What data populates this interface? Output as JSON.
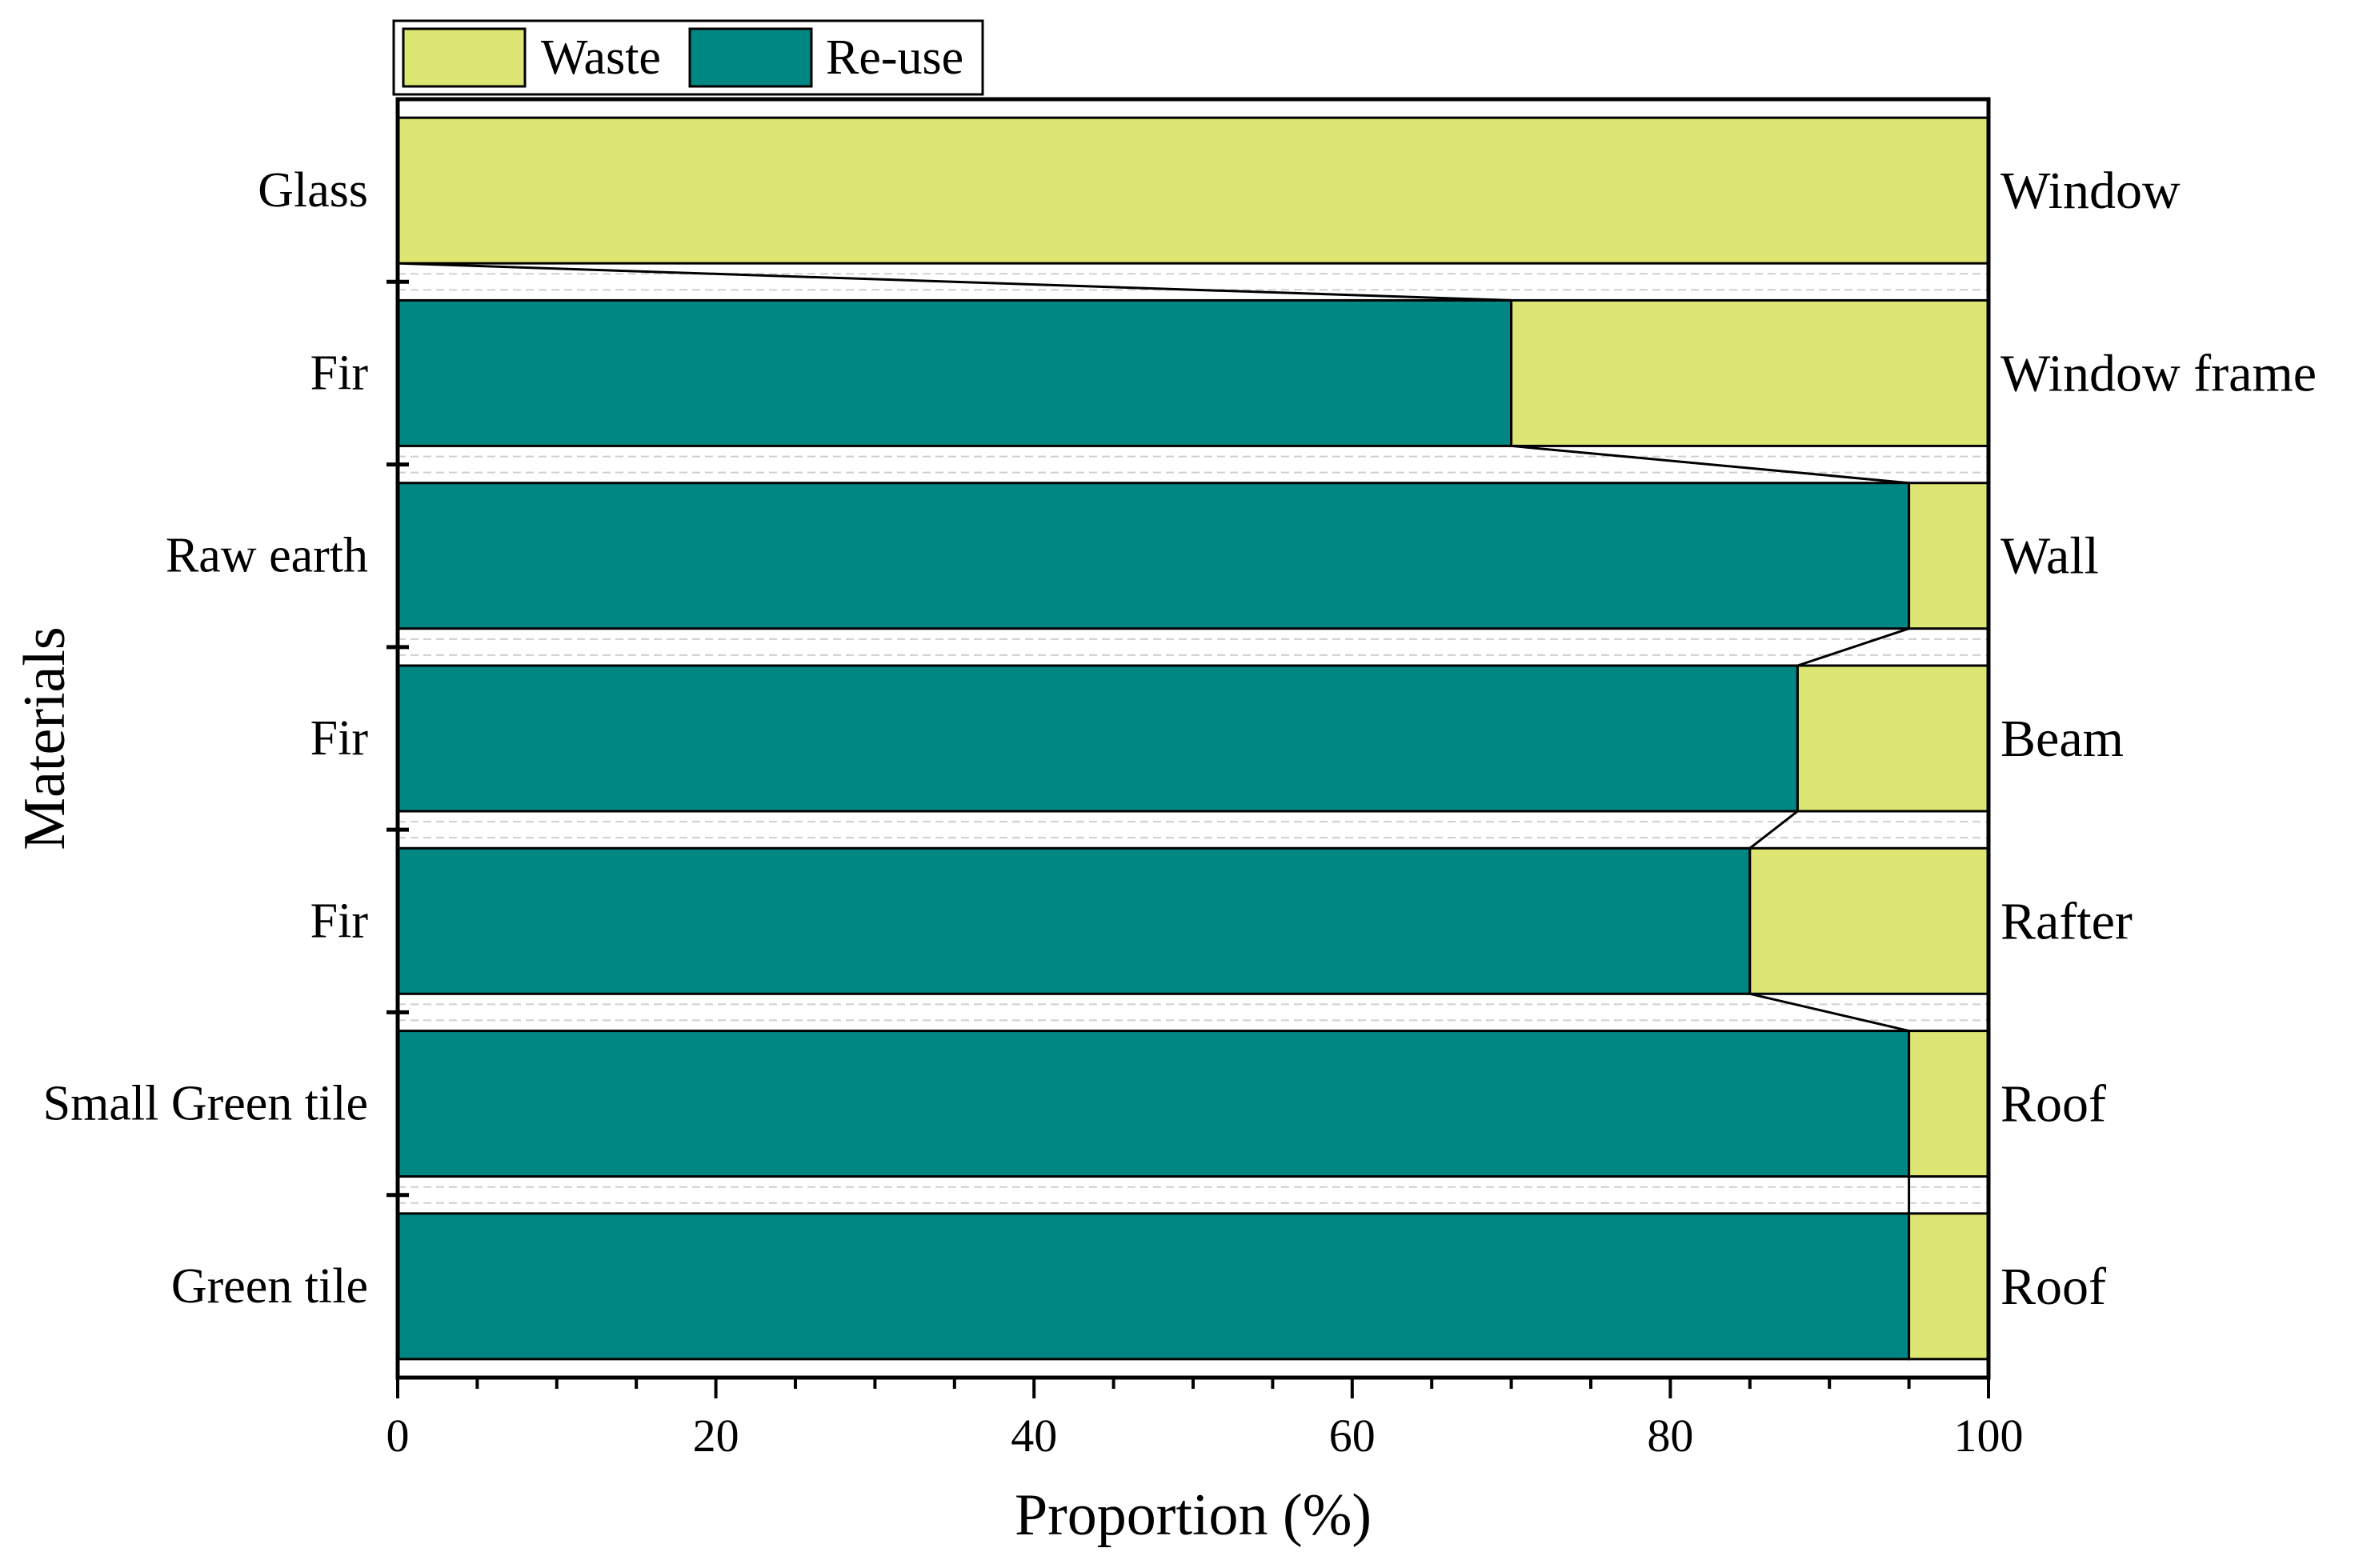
{
  "chart_data": {
    "type": "bar",
    "orientation": "horizontal",
    "stacked": true,
    "percent": true,
    "xlabel": "Proportion (%)",
    "ylabel": "Materials",
    "xlim": [
      0,
      100
    ],
    "xticks": [
      "0",
      "20",
      "40",
      "60",
      "80",
      "100"
    ],
    "categories": [
      "Glass",
      "Fir",
      "Raw earth",
      "Fir",
      "Fir",
      "Small Green tile",
      "Green tile"
    ],
    "components": [
      "Window",
      "Window frame",
      "Wall",
      "Beam",
      "Rafter",
      "Roof",
      "Roof"
    ],
    "series": [
      {
        "name": "Re-use",
        "color": "#008683",
        "values": [
          0,
          70,
          95,
          88,
          85,
          95,
          95
        ]
      },
      {
        "name": "Waste",
        "color": "#dde672",
        "values": [
          100,
          30,
          5,
          12,
          15,
          5,
          5
        ]
      }
    ],
    "legend": {
      "position": "top-left",
      "order": [
        "Waste",
        "Re-use"
      ]
    },
    "connector_lines": true
  }
}
